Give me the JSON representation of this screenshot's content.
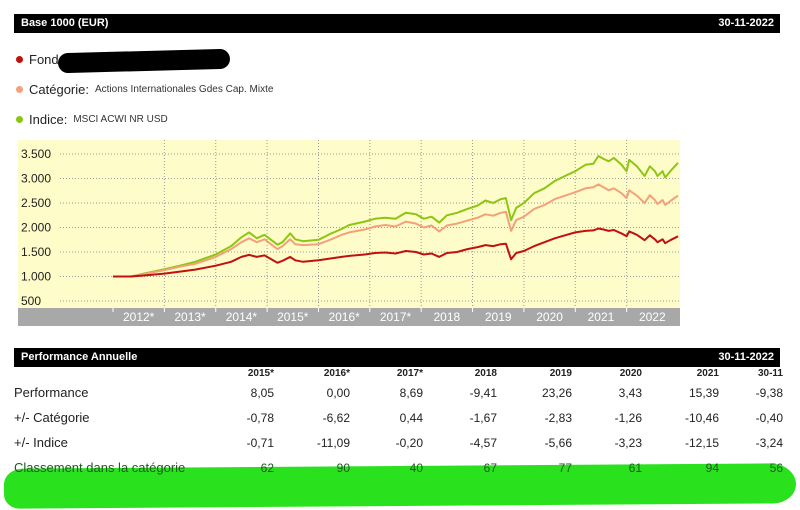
{
  "header": {
    "title": "Base 1000 (EUR)",
    "date": "30-11-2022"
  },
  "legend": [
    {
      "label": "Fonds",
      "value": "",
      "color": "#c01010"
    },
    {
      "label": "Catégorie:",
      "value": "Actions Internationales Gdes Cap. Mixte",
      "color": "#f4a07a"
    },
    {
      "label": "Indice:",
      "value": "MSCI ACWI NR USD",
      "color": "#8cc614"
    }
  ],
  "chart_data": {
    "type": "line",
    "x_categories": [
      "2012*",
      "2013*",
      "2014*",
      "2015*",
      "2016*",
      "2017*",
      "2018",
      "2019",
      "2020",
      "2021",
      "2022"
    ],
    "y_ticks": [
      "3.500",
      "3.000",
      "2.500",
      "2.000",
      "1.500",
      "1.000",
      "500"
    ],
    "ylim": [
      500,
      3500
    ],
    "grid": true,
    "series": [
      {
        "name": "Indice",
        "color": "#8cc614",
        "points": [
          [
            0,
            1000
          ],
          [
            0.35,
            1000
          ],
          [
            0.6,
            1060
          ],
          [
            1.0,
            1150
          ],
          [
            1.3,
            1220
          ],
          [
            1.6,
            1300
          ],
          [
            2.0,
            1450
          ],
          [
            2.3,
            1620
          ],
          [
            2.5,
            1800
          ],
          [
            2.65,
            1900
          ],
          [
            2.8,
            1780
          ],
          [
            2.95,
            1850
          ],
          [
            3.2,
            1650
          ],
          [
            3.3,
            1700
          ],
          [
            3.45,
            1880
          ],
          [
            3.55,
            1760
          ],
          [
            3.7,
            1720
          ],
          [
            4.0,
            1750
          ],
          [
            4.25,
            1880
          ],
          [
            4.45,
            1970
          ],
          [
            4.6,
            2050
          ],
          [
            4.9,
            2120
          ],
          [
            5.1,
            2180
          ],
          [
            5.3,
            2200
          ],
          [
            5.5,
            2180
          ],
          [
            5.7,
            2300
          ],
          [
            5.9,
            2270
          ],
          [
            6.05,
            2180
          ],
          [
            6.2,
            2220
          ],
          [
            6.35,
            2100
          ],
          [
            6.5,
            2250
          ],
          [
            6.7,
            2300
          ],
          [
            6.9,
            2380
          ],
          [
            7.1,
            2450
          ],
          [
            7.25,
            2550
          ],
          [
            7.4,
            2500
          ],
          [
            7.55,
            2580
          ],
          [
            7.65,
            2600
          ],
          [
            7.75,
            2150
          ],
          [
            7.85,
            2400
          ],
          [
            8.0,
            2500
          ],
          [
            8.2,
            2700
          ],
          [
            8.4,
            2800
          ],
          [
            8.6,
            2950
          ],
          [
            8.8,
            3050
          ],
          [
            9.0,
            3150
          ],
          [
            9.2,
            3280
          ],
          [
            9.35,
            3300
          ],
          [
            9.45,
            3460
          ],
          [
            9.55,
            3400
          ],
          [
            9.65,
            3350
          ],
          [
            9.75,
            3420
          ],
          [
            9.9,
            3280
          ],
          [
            10.0,
            3150
          ],
          [
            10.05,
            3380
          ],
          [
            10.2,
            3250
          ],
          [
            10.35,
            3050
          ],
          [
            10.45,
            3250
          ],
          [
            10.55,
            3150
          ],
          [
            10.6,
            3050
          ],
          [
            10.7,
            3150
          ],
          [
            10.75,
            3020
          ],
          [
            10.85,
            3150
          ],
          [
            11.0,
            3320
          ]
        ]
      },
      {
        "name": "Catégorie",
        "color": "#f4a07a",
        "points": [
          [
            0,
            1000
          ],
          [
            0.35,
            1000
          ],
          [
            0.6,
            1050
          ],
          [
            1.0,
            1130
          ],
          [
            1.3,
            1200
          ],
          [
            1.6,
            1260
          ],
          [
            2.0,
            1400
          ],
          [
            2.3,
            1560
          ],
          [
            2.5,
            1700
          ],
          [
            2.65,
            1780
          ],
          [
            2.8,
            1700
          ],
          [
            2.95,
            1760
          ],
          [
            3.2,
            1560
          ],
          [
            3.3,
            1620
          ],
          [
            3.45,
            1760
          ],
          [
            3.55,
            1660
          ],
          [
            3.7,
            1640
          ],
          [
            4.0,
            1660
          ],
          [
            4.25,
            1760
          ],
          [
            4.45,
            1850
          ],
          [
            4.6,
            1900
          ],
          [
            4.9,
            1960
          ],
          [
            5.1,
            2020
          ],
          [
            5.3,
            2050
          ],
          [
            5.5,
            2020
          ],
          [
            5.7,
            2120
          ],
          [
            5.9,
            2080
          ],
          [
            6.05,
            2000
          ],
          [
            6.2,
            2040
          ],
          [
            6.35,
            1920
          ],
          [
            6.5,
            2040
          ],
          [
            6.7,
            2080
          ],
          [
            6.9,
            2140
          ],
          [
            7.1,
            2200
          ],
          [
            7.25,
            2270
          ],
          [
            7.4,
            2240
          ],
          [
            7.55,
            2300
          ],
          [
            7.65,
            2320
          ],
          [
            7.75,
            1930
          ],
          [
            7.85,
            2150
          ],
          [
            8.0,
            2220
          ],
          [
            8.2,
            2380
          ],
          [
            8.4,
            2460
          ],
          [
            8.6,
            2580
          ],
          [
            8.8,
            2650
          ],
          [
            9.0,
            2720
          ],
          [
            9.2,
            2800
          ],
          [
            9.35,
            2820
          ],
          [
            9.45,
            2880
          ],
          [
            9.55,
            2820
          ],
          [
            9.65,
            2760
          ],
          [
            9.75,
            2800
          ],
          [
            9.9,
            2700
          ],
          [
            10.0,
            2600
          ],
          [
            10.05,
            2760
          ],
          [
            10.2,
            2650
          ],
          [
            10.35,
            2500
          ],
          [
            10.45,
            2660
          ],
          [
            10.55,
            2560
          ],
          [
            10.6,
            2480
          ],
          [
            10.7,
            2560
          ],
          [
            10.75,
            2460
          ],
          [
            10.85,
            2540
          ],
          [
            11.0,
            2650
          ]
        ]
      },
      {
        "name": "Fonds",
        "color": "#c01010",
        "points": [
          [
            0,
            1000
          ],
          [
            0.35,
            1000
          ],
          [
            0.6,
            1020
          ],
          [
            1.0,
            1060
          ],
          [
            1.3,
            1100
          ],
          [
            1.6,
            1140
          ],
          [
            2.0,
            1220
          ],
          [
            2.3,
            1300
          ],
          [
            2.5,
            1400
          ],
          [
            2.65,
            1440
          ],
          [
            2.8,
            1400
          ],
          [
            2.95,
            1430
          ],
          [
            3.2,
            1280
          ],
          [
            3.3,
            1320
          ],
          [
            3.45,
            1400
          ],
          [
            3.55,
            1330
          ],
          [
            3.7,
            1300
          ],
          [
            4.0,
            1330
          ],
          [
            4.25,
            1370
          ],
          [
            4.45,
            1400
          ],
          [
            4.6,
            1420
          ],
          [
            4.9,
            1450
          ],
          [
            5.1,
            1480
          ],
          [
            5.3,
            1490
          ],
          [
            5.5,
            1470
          ],
          [
            5.7,
            1520
          ],
          [
            5.9,
            1500
          ],
          [
            6.05,
            1450
          ],
          [
            6.2,
            1470
          ],
          [
            6.35,
            1400
          ],
          [
            6.5,
            1480
          ],
          [
            6.7,
            1500
          ],
          [
            6.9,
            1560
          ],
          [
            7.1,
            1600
          ],
          [
            7.25,
            1640
          ],
          [
            7.4,
            1620
          ],
          [
            7.55,
            1660
          ],
          [
            7.65,
            1670
          ],
          [
            7.75,
            1350
          ],
          [
            7.85,
            1480
          ],
          [
            8.0,
            1520
          ],
          [
            8.2,
            1620
          ],
          [
            8.4,
            1700
          ],
          [
            8.6,
            1780
          ],
          [
            8.8,
            1840
          ],
          [
            9.0,
            1900
          ],
          [
            9.2,
            1930
          ],
          [
            9.35,
            1940
          ],
          [
            9.45,
            1980
          ],
          [
            9.55,
            1960
          ],
          [
            9.65,
            1930
          ],
          [
            9.75,
            1950
          ],
          [
            9.9,
            1880
          ],
          [
            10.0,
            1820
          ],
          [
            10.05,
            1920
          ],
          [
            10.2,
            1850
          ],
          [
            10.35,
            1740
          ],
          [
            10.45,
            1840
          ],
          [
            10.55,
            1760
          ],
          [
            10.6,
            1700
          ],
          [
            10.7,
            1760
          ],
          [
            10.75,
            1680
          ],
          [
            10.85,
            1740
          ],
          [
            11.0,
            1820
          ]
        ]
      }
    ]
  },
  "perf": {
    "title": "Performance Annuelle",
    "date": "30-11-2022",
    "columns": [
      "2015*",
      "2016*",
      "2017*",
      "2018",
      "2019",
      "2020",
      "2021",
      "30-11"
    ],
    "rows": [
      {
        "label": "Performance",
        "values": [
          "8,05",
          "0,00",
          "8,69",
          "-9,41",
          "23,26",
          "3,43",
          "15,39",
          "-9,38"
        ]
      },
      {
        "label": "+/- Catégorie",
        "values": [
          "-0,78",
          "-6,62",
          "0,44",
          "-1,67",
          "-2,83",
          "-1,26",
          "-10,46",
          "-0,40"
        ]
      },
      {
        "label": "+/- Indice",
        "values": [
          "-0,71",
          "-11,09",
          "-0,20",
          "-4,57",
          "-5,66",
          "-3,23",
          "-12,15",
          "-3,24"
        ]
      },
      {
        "label": "Classement dans la catégorie",
        "values": [
          "62",
          "90",
          "40",
          "67",
          "77",
          "61",
          "94",
          "56"
        ]
      }
    ]
  }
}
